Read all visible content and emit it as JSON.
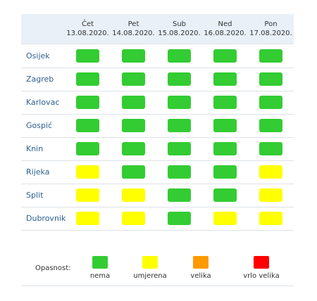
{
  "days": [
    {
      "name": "Čet",
      "date": "13.08.2020."
    },
    {
      "name": "Pet",
      "date": "14.08.2020."
    },
    {
      "name": "Sub",
      "date": "15.08.2020."
    },
    {
      "name": "Ned",
      "date": "16.08.2020."
    },
    {
      "name": "Pon",
      "date": "17.08.2020."
    }
  ],
  "cities": [
    {
      "name": "Osijek",
      "levels": [
        "nema",
        "nema",
        "nema",
        "nema",
        "nema"
      ]
    },
    {
      "name": "Zagreb",
      "levels": [
        "nema",
        "nema",
        "nema",
        "nema",
        "nema"
      ]
    },
    {
      "name": "Karlovac",
      "levels": [
        "nema",
        "nema",
        "nema",
        "nema",
        "nema"
      ]
    },
    {
      "name": "Gospić",
      "levels": [
        "nema",
        "nema",
        "nema",
        "nema",
        "nema"
      ]
    },
    {
      "name": "Knin",
      "levels": [
        "nema",
        "nema",
        "nema",
        "nema",
        "nema"
      ]
    },
    {
      "name": "Rijeka",
      "levels": [
        "umjerena",
        "nema",
        "nema",
        "nema",
        "umjerena"
      ]
    },
    {
      "name": "Split",
      "levels": [
        "umjerena",
        "umjerena",
        "nema",
        "nema",
        "umjerena"
      ]
    },
    {
      "name": "Dubrovnik",
      "levels": [
        "umjerena",
        "umjerena",
        "nema",
        "umjerena",
        "umjerena"
      ]
    }
  ],
  "legend": {
    "title": "Opasnost:",
    "items": [
      {
        "label": "nema",
        "color": "#33cc33"
      },
      {
        "label": "umjerena",
        "color": "#ffff00"
      },
      {
        "label": "velika",
        "color": "#ff9900"
      },
      {
        "label": "vrlo velika",
        "color": "#ff0000"
      }
    ]
  }
}
